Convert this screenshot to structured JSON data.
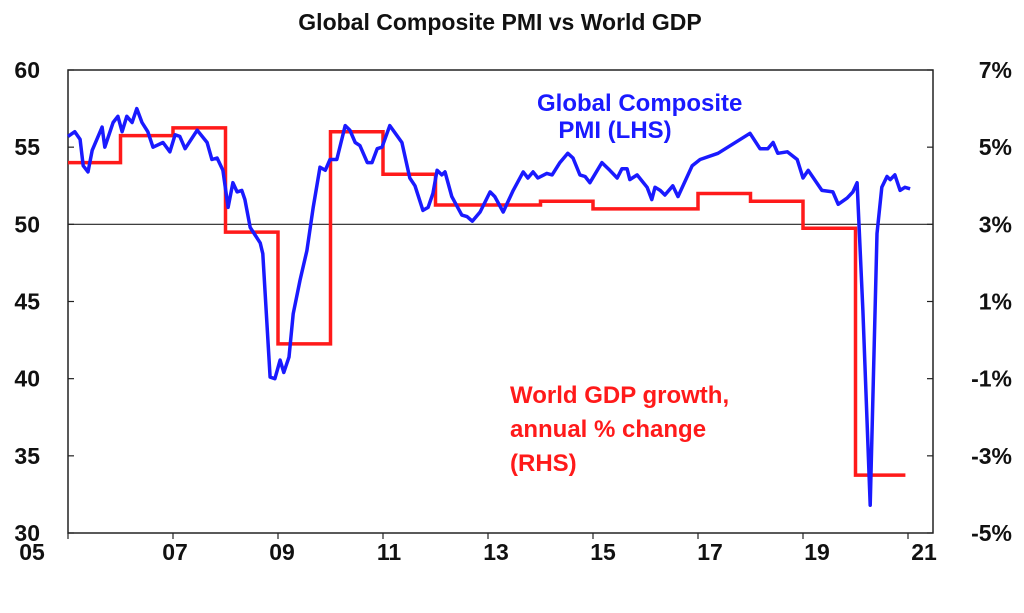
{
  "chart_data": {
    "type": "line",
    "title": "Global Composite PMI vs World GDP",
    "x_tick_labels": [
      "05",
      "07",
      "09",
      "11",
      "13",
      "15",
      "17",
      "19",
      "21"
    ],
    "x_ticks": [
      2005,
      2007,
      2009,
      2011,
      2013,
      2015,
      2017,
      2019,
      2021
    ],
    "xlim": [
      2005,
      2021.5
    ],
    "left_axis": {
      "ylim": [
        30,
        60
      ],
      "tick_labels": [
        "30",
        "35",
        "40",
        "45",
        "50",
        "55",
        "60"
      ],
      "ticks": [
        30,
        35,
        40,
        45,
        50,
        55,
        60
      ]
    },
    "right_axis": {
      "ylim": [
        -5,
        7
      ],
      "tick_labels": [
        "-5%",
        "-3%",
        "-1%",
        "1%",
        "3%",
        "5%",
        "7%"
      ],
      "ticks": [
        -5,
        -3,
        -1,
        1,
        3,
        5,
        7
      ]
    },
    "reference_line": {
      "axis": "left",
      "value": 50
    },
    "grid": false,
    "series": [
      {
        "name": "Global Composite PMI (LHS)",
        "label_lines": [
          "Global Composite",
          "PMI (LHS)"
        ],
        "axis": "left",
        "color": "#1a1aff",
        "style": "line",
        "points": [
          [
            2005.0,
            55.7
          ],
          [
            2005.13,
            56.0
          ],
          [
            2005.23,
            55.5
          ],
          [
            2005.29,
            53.8
          ],
          [
            2005.38,
            53.4
          ],
          [
            2005.46,
            54.8
          ],
          [
            2005.65,
            56.3
          ],
          [
            2005.7,
            55.0
          ],
          [
            2005.86,
            56.6
          ],
          [
            2005.95,
            57.0
          ],
          [
            2006.03,
            56.0
          ],
          [
            2006.12,
            57.0
          ],
          [
            2006.22,
            56.6
          ],
          [
            2006.31,
            57.5
          ],
          [
            2006.41,
            56.6
          ],
          [
            2006.52,
            56.0
          ],
          [
            2006.62,
            55.0
          ],
          [
            2006.81,
            55.3
          ],
          [
            2006.94,
            54.7
          ],
          [
            2007.04,
            55.8
          ],
          [
            2007.13,
            55.7
          ],
          [
            2007.23,
            54.9
          ],
          [
            2007.46,
            56.1
          ],
          [
            2007.65,
            55.3
          ],
          [
            2007.74,
            54.2
          ],
          [
            2007.84,
            54.3
          ],
          [
            2007.95,
            53.5
          ],
          [
            2008.05,
            51.1
          ],
          [
            2008.14,
            52.7
          ],
          [
            2008.22,
            52.1
          ],
          [
            2008.31,
            52.2
          ],
          [
            2008.37,
            51.6
          ],
          [
            2008.47,
            49.8
          ],
          [
            2008.66,
            48.8
          ],
          [
            2008.71,
            48.1
          ],
          [
            2008.85,
            40.1
          ],
          [
            2008.94,
            40.0
          ],
          [
            2009.04,
            41.2
          ],
          [
            2009.11,
            40.4
          ],
          [
            2009.21,
            41.4
          ],
          [
            2009.29,
            44.2
          ],
          [
            2009.42,
            46.4
          ],
          [
            2009.55,
            48.3
          ],
          [
            2009.67,
            51.1
          ],
          [
            2009.8,
            53.7
          ],
          [
            2009.9,
            53.5
          ],
          [
            2009.99,
            54.2
          ],
          [
            2010.12,
            54.2
          ],
          [
            2010.28,
            56.4
          ],
          [
            2010.37,
            56.1
          ],
          [
            2010.47,
            55.3
          ],
          [
            2010.56,
            55.1
          ],
          [
            2010.7,
            54.0
          ],
          [
            2010.79,
            54.0
          ],
          [
            2010.89,
            54.9
          ],
          [
            2010.98,
            55.0
          ],
          [
            2011.13,
            56.4
          ],
          [
            2011.36,
            55.3
          ],
          [
            2011.51,
            53.0
          ],
          [
            2011.61,
            52.5
          ],
          [
            2011.76,
            50.9
          ],
          [
            2011.86,
            51.1
          ],
          [
            2011.95,
            52.0
          ],
          [
            2012.03,
            53.5
          ],
          [
            2012.12,
            53.2
          ],
          [
            2012.18,
            53.4
          ],
          [
            2012.31,
            51.8
          ],
          [
            2012.5,
            50.6
          ],
          [
            2012.6,
            50.5
          ],
          [
            2012.7,
            50.2
          ],
          [
            2012.85,
            50.8
          ],
          [
            2013.04,
            52.1
          ],
          [
            2013.13,
            51.8
          ],
          [
            2013.29,
            50.8
          ],
          [
            2013.48,
            52.2
          ],
          [
            2013.67,
            53.4
          ],
          [
            2013.76,
            53.0
          ],
          [
            2013.86,
            53.4
          ],
          [
            2013.95,
            53.0
          ],
          [
            2014.12,
            53.3
          ],
          [
            2014.22,
            53.2
          ],
          [
            2014.37,
            54.0
          ],
          [
            2014.52,
            54.6
          ],
          [
            2014.62,
            54.3
          ],
          [
            2014.75,
            53.2
          ],
          [
            2014.85,
            53.1
          ],
          [
            2014.94,
            52.7
          ],
          [
            2015.17,
            54.0
          ],
          [
            2015.32,
            53.5
          ],
          [
            2015.46,
            53.0
          ],
          [
            2015.55,
            53.6
          ],
          [
            2015.65,
            53.6
          ],
          [
            2015.7,
            52.9
          ],
          [
            2015.84,
            53.2
          ],
          [
            2016.03,
            52.4
          ],
          [
            2016.12,
            51.6
          ],
          [
            2016.18,
            52.4
          ],
          [
            2016.28,
            52.2
          ],
          [
            2016.37,
            51.9
          ],
          [
            2016.52,
            52.5
          ],
          [
            2016.62,
            51.8
          ],
          [
            2016.89,
            53.8
          ],
          [
            2017.04,
            54.2
          ],
          [
            2017.38,
            54.6
          ],
          [
            2017.99,
            55.9
          ],
          [
            2018.18,
            54.9
          ],
          [
            2018.33,
            54.9
          ],
          [
            2018.43,
            55.3
          ],
          [
            2018.52,
            54.6
          ],
          [
            2018.7,
            54.7
          ],
          [
            2018.89,
            54.2
          ],
          [
            2019.0,
            53.0
          ],
          [
            2019.1,
            53.5
          ],
          [
            2019.36,
            52.2
          ],
          [
            2019.57,
            52.1
          ],
          [
            2019.67,
            51.3
          ],
          [
            2019.84,
            51.7
          ],
          [
            2019.95,
            52.1
          ],
          [
            2020.03,
            52.7
          ],
          [
            2020.14,
            44.4
          ],
          [
            2020.28,
            31.8
          ],
          [
            2020.41,
            49.4
          ],
          [
            2020.5,
            52.4
          ],
          [
            2020.6,
            53.1
          ],
          [
            2020.66,
            52.9
          ],
          [
            2020.75,
            53.2
          ],
          [
            2020.85,
            52.2
          ],
          [
            2020.94,
            52.4
          ],
          [
            2021.04,
            52.3
          ]
        ]
      },
      {
        "name": "World GDP growth, annual % change (RHS)",
        "label_lines": [
          "World GDP growth,",
          "annual % change",
          "(RHS)"
        ],
        "axis": "right",
        "color": "#ff1a1a",
        "style": "step",
        "years": [
          2005,
          2006,
          2007,
          2008,
          2009,
          2010,
          2011,
          2012,
          2013,
          2014,
          2015,
          2016,
          2017,
          2018,
          2019,
          2020
        ],
        "values": [
          4.6,
          5.3,
          5.5,
          2.8,
          -0.1,
          5.4,
          4.3,
          3.5,
          3.5,
          3.6,
          3.4,
          3.4,
          3.8,
          3.6,
          2.9,
          -3.5
        ]
      }
    ]
  }
}
